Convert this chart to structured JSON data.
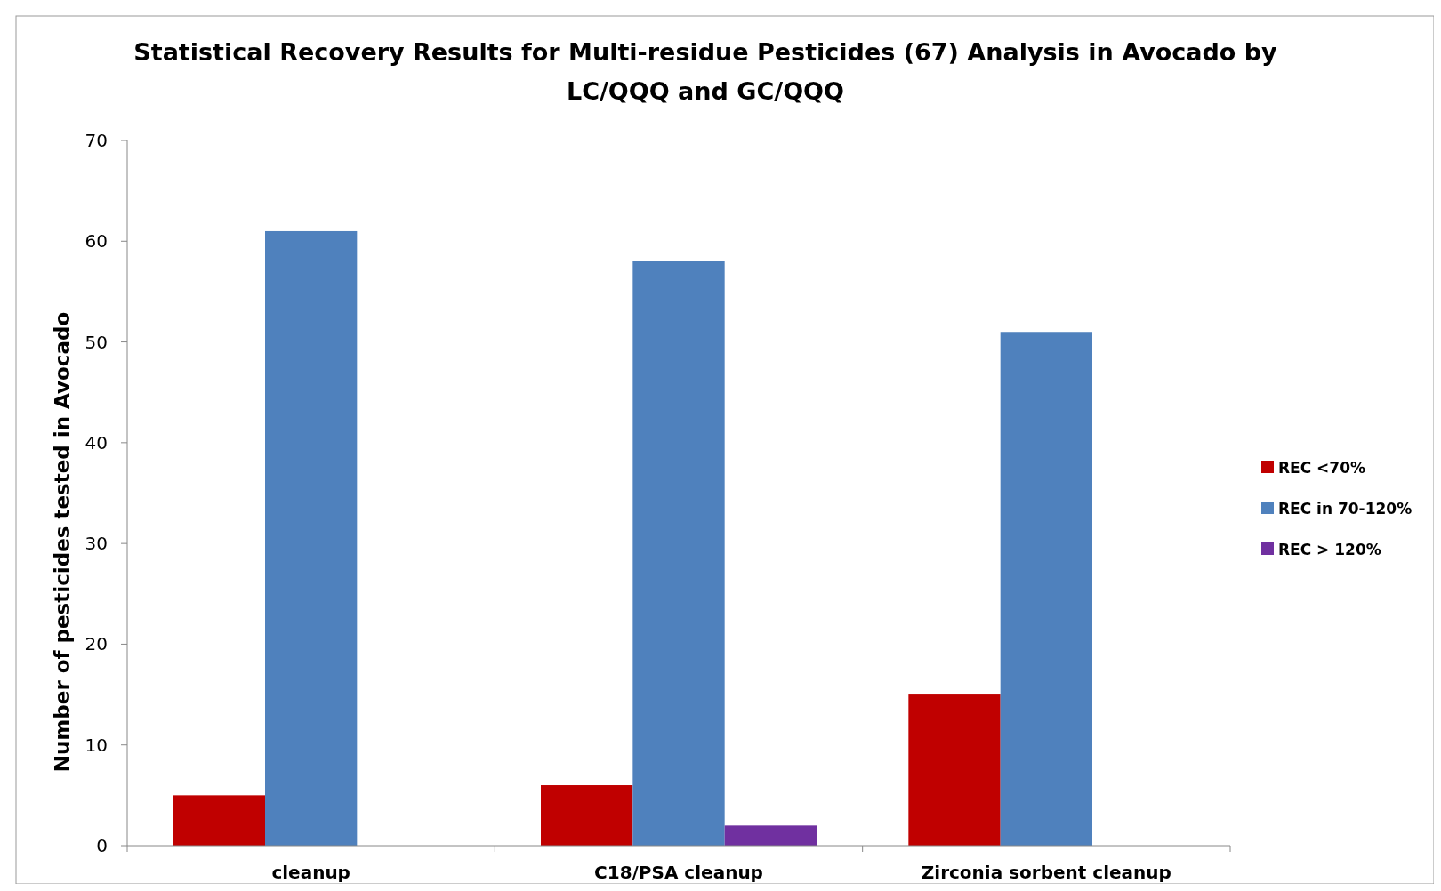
{
  "chart_data": {
    "type": "bar",
    "title": "Statistical Recovery Results for Multi-residue Pesticides (67)  Analysis in Avocado by LC/QQQ and GC/QQQ",
    "ylabel": "Number of pesticides tested in Avocado",
    "categories": [
      "cleanup",
      "C18/PSA cleanup",
      "Zirconia sorbent cleanup"
    ],
    "series": [
      {
        "name": "REC <70%",
        "color": "#c00000",
        "values": [
          5,
          6,
          15
        ]
      },
      {
        "name": "REC in 70-120%",
        "color": "#4f81bd",
        "values": [
          61,
          58,
          51
        ]
      },
      {
        "name": "REC > 120%",
        "color": "#7030a0",
        "values": [
          0,
          2,
          0
        ]
      }
    ],
    "ylim": [
      0,
      70
    ],
    "yticks": [
      0,
      10,
      20,
      30,
      40,
      50,
      60,
      70
    ],
    "grid": false,
    "legend": "right"
  }
}
